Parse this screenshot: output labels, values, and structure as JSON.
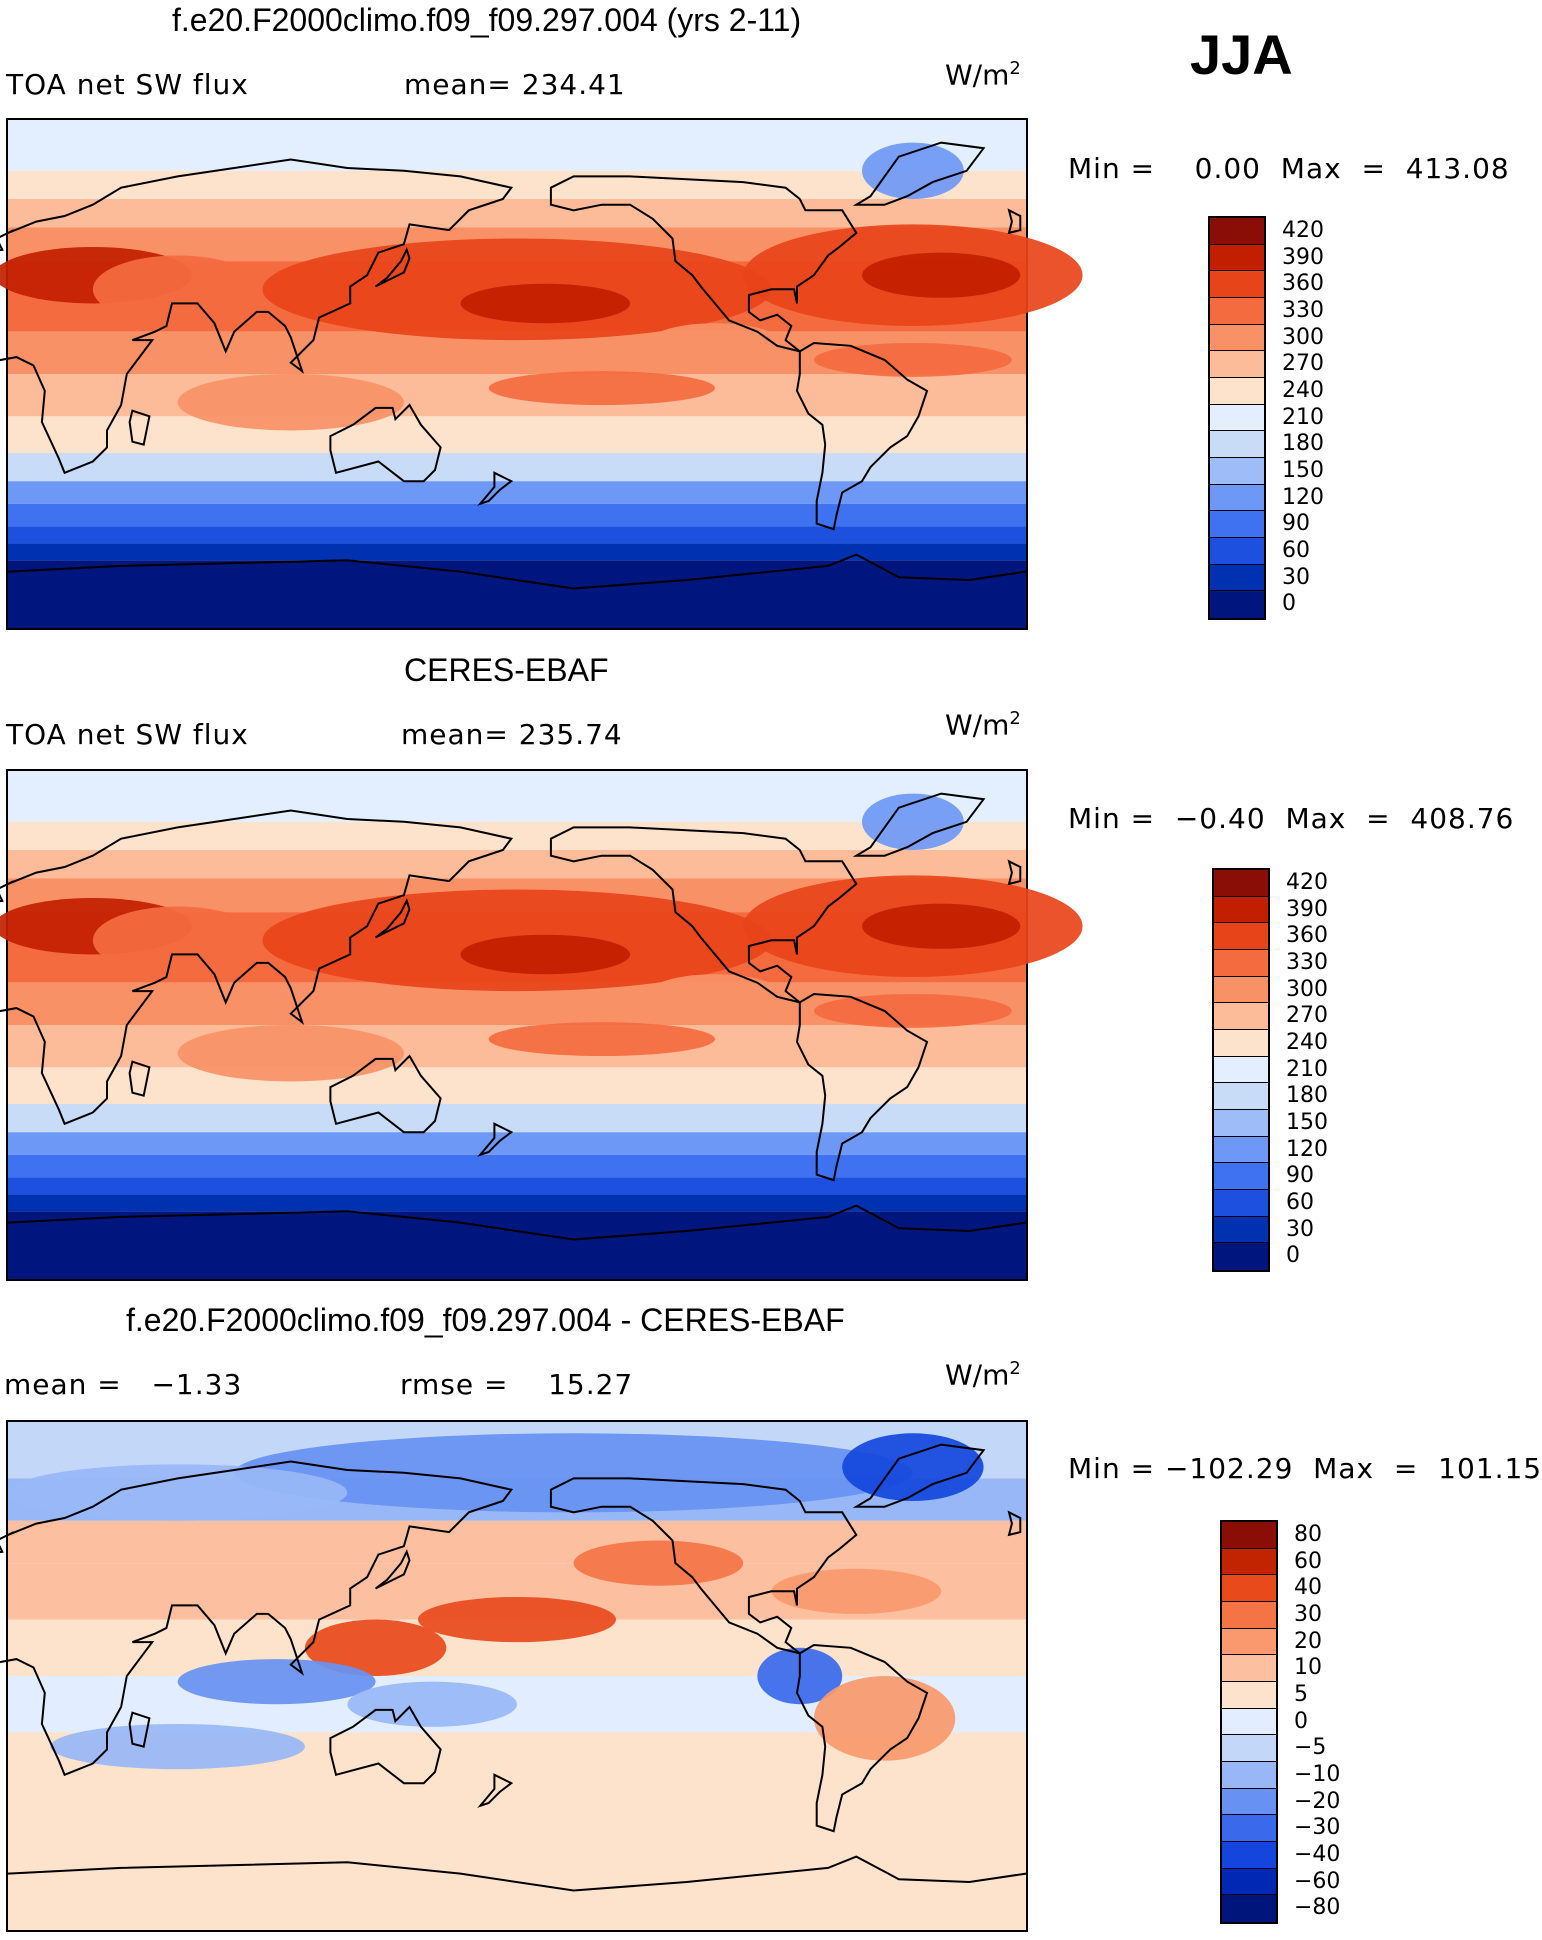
{
  "season": "JJA",
  "colors": {
    "abs": [
      "#00167f",
      "#0031b0",
      "#1e50e0",
      "#3f72f0",
      "#6e98f5",
      "#9ebcf7",
      "#c8dcf8",
      "#e3efff",
      "#fde2cc",
      "#fcbb99",
      "#f99167",
      "#f46b40",
      "#e84419",
      "#c21f00",
      "#8a0e06"
    ],
    "diff": [
      "#00157b",
      "#0028b5",
      "#1446dd",
      "#3a69ec",
      "#6791f2",
      "#98b7f6",
      "#c3d7f8",
      "#e2eeff",
      "#fde2cc",
      "#fcc0a0",
      "#f9996d",
      "#f47446",
      "#e84a1c",
      "#c22300",
      "#8a0e06"
    ]
  },
  "panels": [
    {
      "title": "f.e20.F2000climo.f09_f09.297.004 (yrs 2-11)",
      "left_text": "TOA net SW flux",
      "mid_text": "mean= 234.41",
      "units_base": "W/m",
      "units_exp": "2",
      "minmax": "Min =    0.00  Max  =  413.08",
      "levels": [
        "420",
        "390",
        "360",
        "330",
        "300",
        "270",
        "240",
        "210",
        "180",
        "150",
        "120",
        "90",
        "60",
        "30",
        "0"
      ]
    },
    {
      "title": "CERES-EBAF",
      "left_text": "TOA net SW flux",
      "mid_text": "mean= 235.74",
      "units_base": "W/m",
      "units_exp": "2",
      "minmax": "Min =  −0.40  Max  =  408.76",
      "levels": [
        "420",
        "390",
        "360",
        "330",
        "300",
        "270",
        "240",
        "210",
        "180",
        "150",
        "120",
        "90",
        "60",
        "30",
        "0"
      ]
    },
    {
      "title": "f.e20.F2000climo.f09_f09.297.004 - CERES-EBAF",
      "left_text": "mean =   −1.33",
      "mid_text": "rmse =    15.27",
      "units_base": "W/m",
      "units_exp": "2",
      "minmax": "Min = −102.29  Max  =  101.15",
      "levels": [
        "80",
        "60",
        "40",
        "30",
        "20",
        "10",
        "5",
        "0",
        "−5",
        "−10",
        "−20",
        "−30",
        "−40",
        "−60",
        "−80"
      ]
    }
  ],
  "chart_data": [
    {
      "type": "heatmap",
      "title": "f.e20.F2000climo.f09_f09.297.004 (yrs 2-11)",
      "variable": "TOA net SW flux",
      "units": "W/m2",
      "mean": 234.41,
      "min": 0.0,
      "max": 413.08,
      "contour_levels": [
        0,
        30,
        60,
        90,
        120,
        150,
        180,
        210,
        240,
        270,
        300,
        330,
        360,
        390,
        420
      ]
    },
    {
      "type": "heatmap",
      "title": "CERES-EBAF",
      "variable": "TOA net SW flux",
      "units": "W/m2",
      "mean": 235.74,
      "min": -0.4,
      "max": 408.76,
      "contour_levels": [
        0,
        30,
        60,
        90,
        120,
        150,
        180,
        210,
        240,
        270,
        300,
        330,
        360,
        390,
        420
      ]
    },
    {
      "type": "heatmap",
      "title": "f.e20.F2000climo.f09_f09.297.004 - CERES-EBAF",
      "units": "W/m2",
      "mean": -1.33,
      "rmse": 15.27,
      "min": -102.29,
      "max": 101.15,
      "contour_levels": [
        -80,
        -60,
        -40,
        -30,
        -20,
        -10,
        -5,
        0,
        5,
        10,
        20,
        30,
        40,
        60,
        80
      ]
    }
  ]
}
